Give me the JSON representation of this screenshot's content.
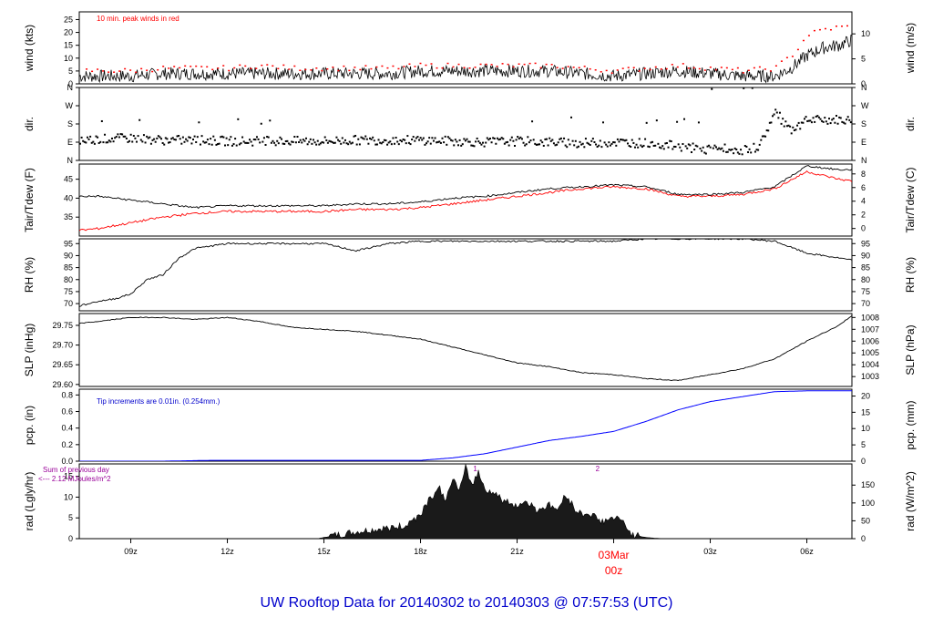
{
  "title": "UW Rooftop Data for 20140302  to  20140303 @ 07:57:53  (UTC)",
  "colors": {
    "axis": "#000000",
    "series": "#000000",
    "peak": "#ff0000",
    "dew": "#ff0000",
    "precip": "#0000ff",
    "note_blue": "#0000cc",
    "note_purple": "#990099",
    "date_label": "#ff0000",
    "title": "#0000cc"
  },
  "x_axis": {
    "range_hours": [
      7.4,
      31.4
    ],
    "ticks": [
      {
        "hour": 9,
        "label": "09z"
      },
      {
        "hour": 12,
        "label": "12z"
      },
      {
        "hour": 15,
        "label": "15z"
      },
      {
        "hour": 18,
        "label": "18z"
      },
      {
        "hour": 21,
        "label": "21z"
      },
      {
        "hour": 24,
        "label": "00z"
      },
      {
        "hour": 27,
        "label": "03z"
      },
      {
        "hour": 30,
        "label": "06z"
      }
    ],
    "date_label": "03Mar",
    "date_hour": 24,
    "date_hour_label": "00z"
  },
  "chart_data": [
    {
      "type": "line",
      "id": "wind",
      "ylabel": "wind (kts)",
      "ylabel_right": "wind (m/s)",
      "ylim": [
        0,
        28
      ],
      "yticks": [
        0,
        5,
        10,
        15,
        20,
        25
      ],
      "right_ticks": [
        {
          "label": "0",
          "value": 0
        },
        {
          "label": "5",
          "value": 9.72
        },
        {
          "label": "10",
          "value": 19.44
        }
      ],
      "annotation": "10 min. peak winds in red",
      "series": [
        {
          "name": "wind speed (kts)",
          "hours": [
            7.4,
            8,
            9,
            10,
            11,
            12,
            13,
            14,
            15,
            16,
            17,
            18,
            19,
            20,
            21,
            22,
            23,
            24,
            25,
            26,
            27,
            28,
            29,
            29.5,
            30,
            30.5,
            31,
            31.4
          ],
          "values": [
            3,
            3,
            3,
            4,
            4,
            4,
            4,
            4,
            4,
            4,
            4,
            5,
            5,
            5,
            5,
            5,
            4,
            3,
            4,
            5,
            4,
            3,
            3,
            6,
            11,
            14,
            15,
            17
          ]
        },
        {
          "name": "10 min. peak winds",
          "hours": [
            8,
            9,
            10,
            11,
            12,
            13,
            14,
            15,
            16,
            17,
            18,
            19,
            20,
            21,
            22,
            23,
            24,
            25,
            26,
            27,
            28,
            29,
            29.6,
            30,
            30.5,
            31
          ],
          "values": [
            5,
            5,
            6,
            6,
            6,
            7,
            6,
            6,
            6,
            6,
            7,
            7,
            7,
            7,
            7,
            6,
            5,
            6,
            7,
            6,
            5,
            6,
            12,
            19,
            21,
            22
          ]
        }
      ]
    },
    {
      "type": "scatter",
      "id": "dir",
      "ylabel": "dir.",
      "ylabel_right": "dir.",
      "yticks": [
        {
          "label": "N",
          "value": 0
        },
        {
          "label": "E",
          "value": 90
        },
        {
          "label": "S",
          "value": 180
        },
        {
          "label": "W",
          "value": 270
        },
        {
          "label": "N",
          "value": 360
        }
      ],
      "ylim": [
        0,
        360
      ],
      "series": [
        {
          "name": "wind direction (deg)",
          "hours": [
            7.4,
            8,
            9,
            10,
            11,
            12,
            13,
            14,
            15,
            16,
            17,
            18,
            19,
            20,
            21,
            22,
            23,
            24,
            25,
            26,
            26.5,
            27,
            27.5,
            28,
            28.5,
            29,
            29.5,
            30,
            30.5,
            31,
            31.4
          ],
          "values": [
            100,
            105,
            110,
            100,
            100,
            95,
            95,
            95,
            95,
            100,
            100,
            100,
            95,
            90,
            95,
            90,
            85,
            90,
            85,
            70,
            60,
            50,
            60,
            50,
            70,
            240,
            140,
            195,
            200,
            200,
            195
          ]
        }
      ]
    },
    {
      "type": "line",
      "id": "temp",
      "ylabel": "Tair/Tdew (F)",
      "ylabel_right": "Tair/Tdew (C)",
      "ylim": [
        30,
        49
      ],
      "yticks": [
        35,
        40,
        45
      ],
      "right_ticks": [
        {
          "label": "0",
          "value": 32
        },
        {
          "label": "2",
          "value": 35.6
        },
        {
          "label": "4",
          "value": 39.2
        },
        {
          "label": "6",
          "value": 42.8
        },
        {
          "label": "8",
          "value": 46.4
        }
      ],
      "series": [
        {
          "name": "Tair",
          "hours": [
            7.4,
            8,
            9,
            10,
            11,
            12,
            13,
            14,
            15,
            16,
            17,
            18,
            19,
            20,
            21,
            22,
            23,
            24,
            25,
            26,
            27,
            28,
            29,
            30,
            31,
            31.4
          ],
          "values": [
            40.5,
            40.5,
            39.5,
            38.5,
            37.5,
            38,
            38,
            38,
            38,
            38.5,
            38.5,
            39,
            40,
            40.5,
            41.5,
            42.5,
            43,
            43.5,
            43,
            41,
            41,
            41.5,
            43,
            48.5,
            47.5,
            47.5
          ]
        },
        {
          "name": "Tdew",
          "hours": [
            7.4,
            8,
            9,
            10,
            11,
            12,
            13,
            14,
            15,
            16,
            17,
            18,
            19,
            20,
            21,
            22,
            23,
            24,
            25,
            26,
            27,
            28,
            29,
            30,
            31,
            31.4
          ],
          "values": [
            31.5,
            32,
            33.5,
            35,
            36,
            36.5,
            36.5,
            36.5,
            36.5,
            37,
            37,
            37.5,
            38.5,
            39.5,
            40.5,
            41.5,
            42.5,
            43,
            42.5,
            40.5,
            40.5,
            41,
            42.5,
            47,
            45,
            44.5
          ]
        }
      ]
    },
    {
      "type": "line",
      "id": "rh",
      "ylabel": "RH (%)",
      "ylabel_right": "RH (%)",
      "ylim": [
        67,
        97
      ],
      "yticks": [
        70,
        75,
        80,
        85,
        90,
        95
      ],
      "series": [
        {
          "name": "relative humidity",
          "hours": [
            7.4,
            8,
            8.5,
            9,
            9.5,
            10,
            10.5,
            11,
            12,
            13,
            14,
            15,
            16,
            17,
            18,
            19,
            20,
            21,
            22,
            23,
            24,
            25,
            26,
            27,
            28,
            29,
            30,
            31,
            31.4
          ],
          "values": [
            69,
            71,
            72,
            74,
            80,
            82,
            89,
            93,
            95,
            95,
            95,
            95,
            92,
            95,
            96,
            96,
            96,
            96,
            96,
            96,
            96,
            97,
            97,
            97,
            97,
            96,
            91,
            89,
            88
          ]
        }
      ]
    },
    {
      "type": "line",
      "id": "slp",
      "ylabel": "SLP (inHg)",
      "ylabel_right": "SLP (hPa)",
      "ylim": [
        29.595,
        29.78
      ],
      "yticks": [
        29.6,
        29.65,
        29.7,
        29.75
      ],
      "ytick_labels": [
        "29.60",
        "29.65",
        "29.70",
        "29.75"
      ],
      "right_ticks": [
        {
          "label": "1003",
          "value": 29.62
        },
        {
          "label": "1004",
          "value": 29.65
        },
        {
          "label": "1005",
          "value": 29.68
        },
        {
          "label": "1006",
          "value": 29.71
        },
        {
          "label": "1007",
          "value": 29.74
        },
        {
          "label": "1008",
          "value": 29.77
        }
      ],
      "series": [
        {
          "name": "sea level pressure",
          "hours": [
            7.4,
            8,
            9,
            10,
            11,
            12,
            13,
            14,
            15,
            16,
            17,
            18,
            19,
            20,
            21,
            22,
            23,
            24,
            25,
            26,
            27,
            28,
            29,
            30,
            31,
            31.4
          ],
          "values": [
            29.755,
            29.76,
            29.77,
            29.77,
            29.765,
            29.77,
            29.76,
            29.745,
            29.74,
            29.735,
            29.725,
            29.715,
            29.695,
            29.675,
            29.655,
            29.645,
            29.63,
            29.625,
            29.615,
            29.61,
            29.625,
            29.64,
            29.665,
            29.71,
            29.75,
            29.775
          ]
        }
      ]
    },
    {
      "type": "area",
      "id": "pcp",
      "ylabel": "pcp. (in)",
      "ylabel_right": "pcp. (mm)",
      "ylim": [
        0,
        0.87
      ],
      "yticks": [
        0.0,
        0.2,
        0.4,
        0.6,
        0.8
      ],
      "ytick_labels": [
        "0.0",
        "0.2",
        "0.4",
        "0.6",
        "0.8"
      ],
      "right_ticks": [
        {
          "label": "0",
          "value": 0
        },
        {
          "label": "5",
          "value": 0.197
        },
        {
          "label": "10",
          "value": 0.394
        },
        {
          "label": "15",
          "value": 0.591
        },
        {
          "label": "20",
          "value": 0.787
        }
      ],
      "annotation": "Tip increments are 0.01in. (0.254mm.)",
      "series": [
        {
          "name": "accumulated precipitation",
          "hours": [
            7.4,
            10,
            11.5,
            14,
            16,
            18,
            19,
            20,
            21,
            22,
            23,
            24,
            25,
            26,
            27,
            28,
            29,
            30,
            31,
            31.4
          ],
          "values": [
            0,
            0,
            0.01,
            0.01,
            0.01,
            0.01,
            0.04,
            0.09,
            0.17,
            0.25,
            0.3,
            0.36,
            0.48,
            0.62,
            0.72,
            0.78,
            0.84,
            0.85,
            0.85,
            0.85
          ]
        }
      ]
    },
    {
      "type": "area",
      "id": "rad",
      "ylabel": "rad (Lgly/hr)",
      "ylabel_right": "rad (W/m^2)",
      "ylim": [
        0,
        18
      ],
      "yticks": [
        0,
        5,
        10,
        15
      ],
      "right_ticks": [
        {
          "label": "0",
          "value": 0
        },
        {
          "label": "50",
          "value": 4.3
        },
        {
          "label": "100",
          "value": 8.6
        },
        {
          "label": "150",
          "value": 12.9
        }
      ],
      "annotation_lines": [
        "Sum of previous day",
        "<--- 2.12 MJoules/m^2"
      ],
      "markers": [
        {
          "label": "1",
          "hour": 19.7
        },
        {
          "label": "2",
          "hour": 23.5
        }
      ],
      "series": [
        {
          "name": "solar radiation",
          "hours": [
            7.4,
            14.8,
            15,
            15.5,
            16,
            16.5,
            17,
            17.5,
            18,
            18.3,
            18.6,
            18.8,
            19,
            19.2,
            19.4,
            19.6,
            19.8,
            20,
            20.3,
            20.6,
            21,
            21.3,
            21.6,
            22,
            22.3,
            22.5,
            22.8,
            23,
            23.3,
            23.6,
            24,
            24.3,
            24.6,
            25,
            25.3,
            25.6,
            31.4
          ],
          "values": [
            0,
            0,
            0.3,
            0.8,
            1.5,
            2,
            2.5,
            3,
            6,
            10,
            12,
            9,
            15,
            11,
            17,
            13,
            16,
            12,
            11,
            9,
            8,
            9,
            7,
            8,
            7,
            11,
            7,
            6,
            6,
            4,
            5,
            4,
            0.8,
            0.3,
            0.1,
            0,
            0
          ]
        }
      ]
    }
  ]
}
